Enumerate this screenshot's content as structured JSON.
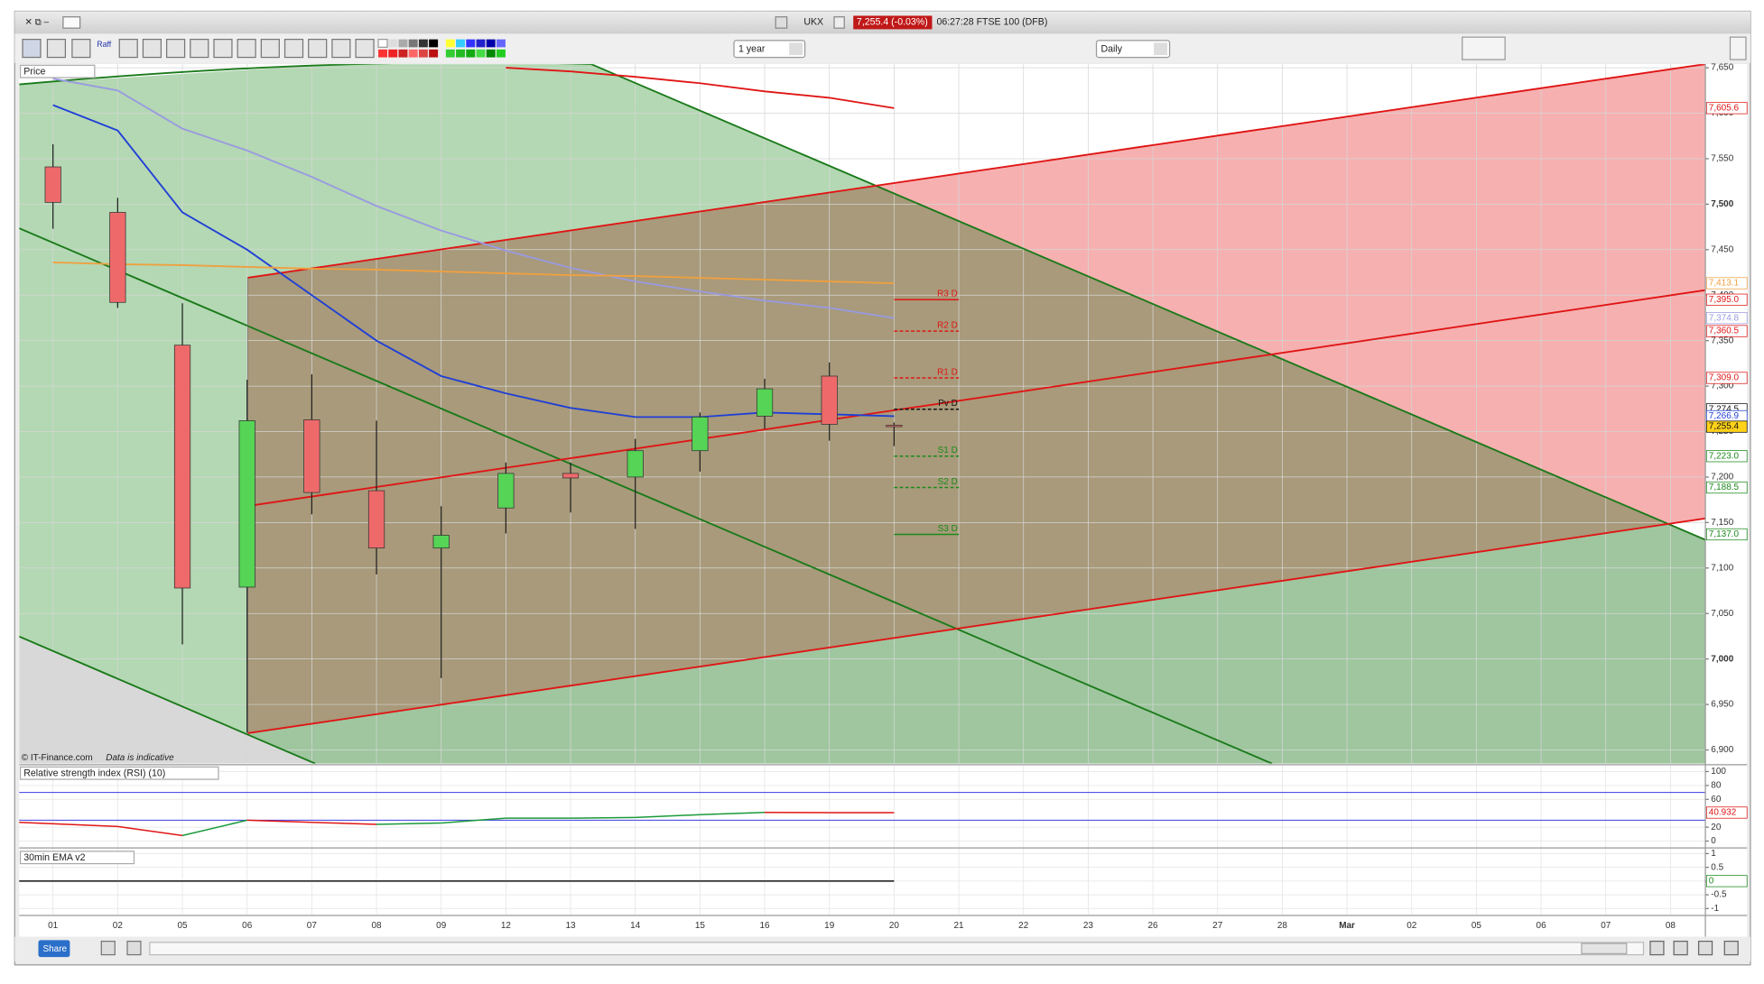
{
  "window": {
    "symbol": "UKX",
    "quote": "7,255.4 (-0.03%)",
    "status": "06:27:28 FTSE 100 (DFB)"
  },
  "toolbar": {
    "raff": "Raff",
    "period": "1 year",
    "interval": "Daily"
  },
  "chart_data": [
    {
      "type": "candlestick",
      "title": "Price",
      "categories": [
        "01",
        "02",
        "05",
        "06",
        "07",
        "08",
        "09",
        "12",
        "13",
        "14",
        "15",
        "16",
        "19",
        "20",
        "21",
        "22",
        "23",
        "26",
        "27",
        "28",
        "Mar",
        "02",
        "05",
        "06",
        "07",
        "08"
      ],
      "open": [
        7541,
        7491,
        7345,
        7079,
        7263,
        7185,
        7122,
        7166,
        7204,
        7200,
        7229,
        7267,
        7311,
        7257,
        null,
        null,
        null,
        null,
        null,
        null,
        null,
        null,
        null,
        null,
        null,
        null
      ],
      "high": [
        7566,
        7507,
        7391,
        7307,
        7313,
        7262,
        7168,
        7216,
        7216,
        7242,
        7271,
        7308,
        7326,
        7260,
        null,
        null,
        null,
        null,
        null,
        null,
        null,
        null,
        null,
        null,
        null,
        null
      ],
      "low": [
        7473,
        7386,
        7016,
        6919,
        7159,
        7093,
        6979,
        7138,
        7161,
        7143,
        7206,
        7253,
        7240,
        7234,
        null,
        null,
        null,
        null,
        null,
        null,
        null,
        null,
        null,
        null,
        null,
        null
      ],
      "close": [
        7502,
        7392,
        7078,
        7262,
        7183,
        7122,
        7136,
        7204,
        7199,
        7229,
        7266,
        7297,
        7258,
        7255.4,
        null,
        null,
        null,
        null,
        null,
        null,
        null,
        null,
        null,
        null,
        null,
        null
      ],
      "last_close_label": "7,255.4",
      "up_color": "#55d455",
      "down_color": "#ee6a6a",
      "ylim": [
        6885,
        7654
      ],
      "yticks": [
        {
          "value": 6900,
          "label": "6,900"
        },
        {
          "value": 6950,
          "label": "6,950"
        },
        {
          "value": 7000,
          "label": "7,000"
        },
        {
          "value": 7050,
          "label": "7,050"
        },
        {
          "value": 7100,
          "label": "7,100"
        },
        {
          "value": 7150,
          "label": "7,150"
        },
        {
          "value": 7200,
          "label": "7,200"
        },
        {
          "value": 7250,
          "label": "7,250"
        },
        {
          "value": 7300,
          "label": "7,300"
        },
        {
          "value": 7350,
          "label": "7,350"
        },
        {
          "value": 7400,
          "label": "7,400"
        },
        {
          "value": 7450,
          "label": "7,450"
        },
        {
          "value": 7500,
          "label": "7,500"
        },
        {
          "value": 7550,
          "label": "7,550"
        },
        {
          "value": 7600,
          "label": "7,600"
        },
        {
          "value": 7650,
          "label": "7,650"
        }
      ],
      "grid": true,
      "overlays": [
        {
          "color": "#1f3fd6",
          "values": [
            7609,
            7581,
            7491,
            7450,
            7400,
            7350,
            7311,
            7292,
            7276,
            7266,
            7266,
            7271,
            7269,
            7266.9
          ],
          "last_label": "7,266.9"
        },
        {
          "color": "#9a9ae0",
          "values": [
            7638,
            7625,
            7583,
            7559,
            7530,
            7498,
            7471,
            7449,
            7430,
            7415,
            7404,
            7394,
            7386,
            7374.8
          ],
          "last_label": "7,374.8"
        },
        {
          "color": "#f0a040",
          "values": [
            7436,
            7434,
            7433,
            7431,
            7429,
            7428,
            7426,
            7424,
            7422,
            7421,
            7419,
            7417,
            7415,
            7413.1
          ],
          "last_label": "7,413.1"
        },
        {
          "color": "#e01515",
          "values": [
            null,
            null,
            null,
            null,
            null,
            null,
            null,
            7650,
            7646,
            7640,
            7633,
            7624,
            7617,
            7605.6
          ],
          "last_label": "7,605.6"
        }
      ],
      "levels": [
        {
          "label": "R3 D",
          "value": 7395,
          "value_label": "7,395.0",
          "color": "#e01515",
          "dash": false
        },
        {
          "label": "R2 D",
          "value": 7360.5,
          "value_label": "7,360.5",
          "color": "#e01515",
          "dash": true
        },
        {
          "label": "R1 D",
          "value": 7309,
          "value_label": "7,309.0",
          "color": "#e01515",
          "dash": true
        },
        {
          "label": "Pv D",
          "value": 7274.5,
          "value_label": "7,274.5",
          "color": "#111111",
          "dash": true
        },
        {
          "label": "S1 D",
          "value": 7223,
          "value_label": "7,223.0",
          "color": "#1a8a1a",
          "dash": true
        },
        {
          "label": "S2 D",
          "value": 7188.5,
          "value_label": "7,188.5",
          "color": "#1a8a1a",
          "dash": true
        },
        {
          "label": "S3 D",
          "value": 7137,
          "value_label": "7,137.0",
          "color": "#1a8a1a",
          "dash": false
        }
      ]
    },
    {
      "type": "line",
      "title": "Relative strength index (RSI) (10)",
      "values": [
        27,
        21,
        8,
        30,
        27,
        24,
        26,
        33,
        33,
        34,
        38,
        41.2,
        40.95,
        40.932
      ],
      "last_label": "40.932",
      "up_color": "#1a9a3a",
      "down_color": "#e01515",
      "ylim": [
        -6.6,
        108.2
      ],
      "yticks": [
        0,
        20,
        60,
        80,
        100
      ],
      "bands": [
        70,
        30
      ],
      "band_color": "#3a3ae0"
    },
    {
      "type": "line",
      "title": "30min EMA v2",
      "values": [
        0,
        0,
        0,
        0,
        0,
        0,
        0,
        0,
        0,
        0,
        0,
        0,
        0,
        0
      ],
      "last_label": "0",
      "up_color": "#111111",
      "down_color": "#111111",
      "ylim": [
        -1.21,
        1.125
      ],
      "yticks": [
        -1,
        -0.5,
        0,
        0.5,
        1
      ]
    }
  ],
  "footer": {
    "copyright": "© IT-Finance.com",
    "note": "Data is indicative",
    "share": "Share"
  }
}
